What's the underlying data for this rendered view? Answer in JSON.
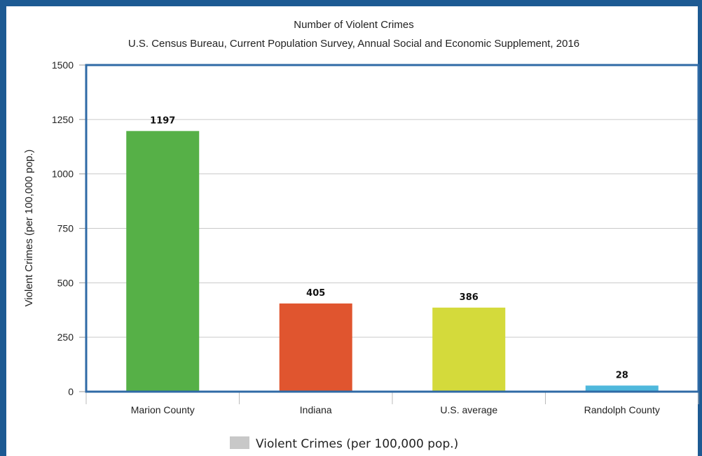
{
  "chart_data": {
    "type": "bar",
    "title": "Number of Violent Crimes",
    "subtitle": "U.S. Census Bureau, Current Population Survey, Annual Social and Economic Supplement, 2016",
    "ylabel": "Violent Crimes (per 100,000 pop.)",
    "xlabel": "",
    "categories": [
      "Marion County",
      "Indiana",
      "U.S. average",
      "Randolph County"
    ],
    "values": [
      1197,
      405,
      386,
      28
    ],
    "data_labels": [
      "1197",
      "405",
      "386",
      "28"
    ],
    "colors": [
      "#56b047",
      "#e0552f",
      "#d4da3b",
      "#4fb8dc"
    ],
    "ylim": [
      0,
      1500
    ],
    "yticks": [
      0,
      250,
      500,
      750,
      1000,
      1250,
      1500
    ],
    "grid": true,
    "legend": {
      "placement": "bottom",
      "entries": [
        {
          "label": "Violent Crimes (per 100,000 pop.)",
          "color": "#c8c8c8"
        }
      ]
    }
  }
}
